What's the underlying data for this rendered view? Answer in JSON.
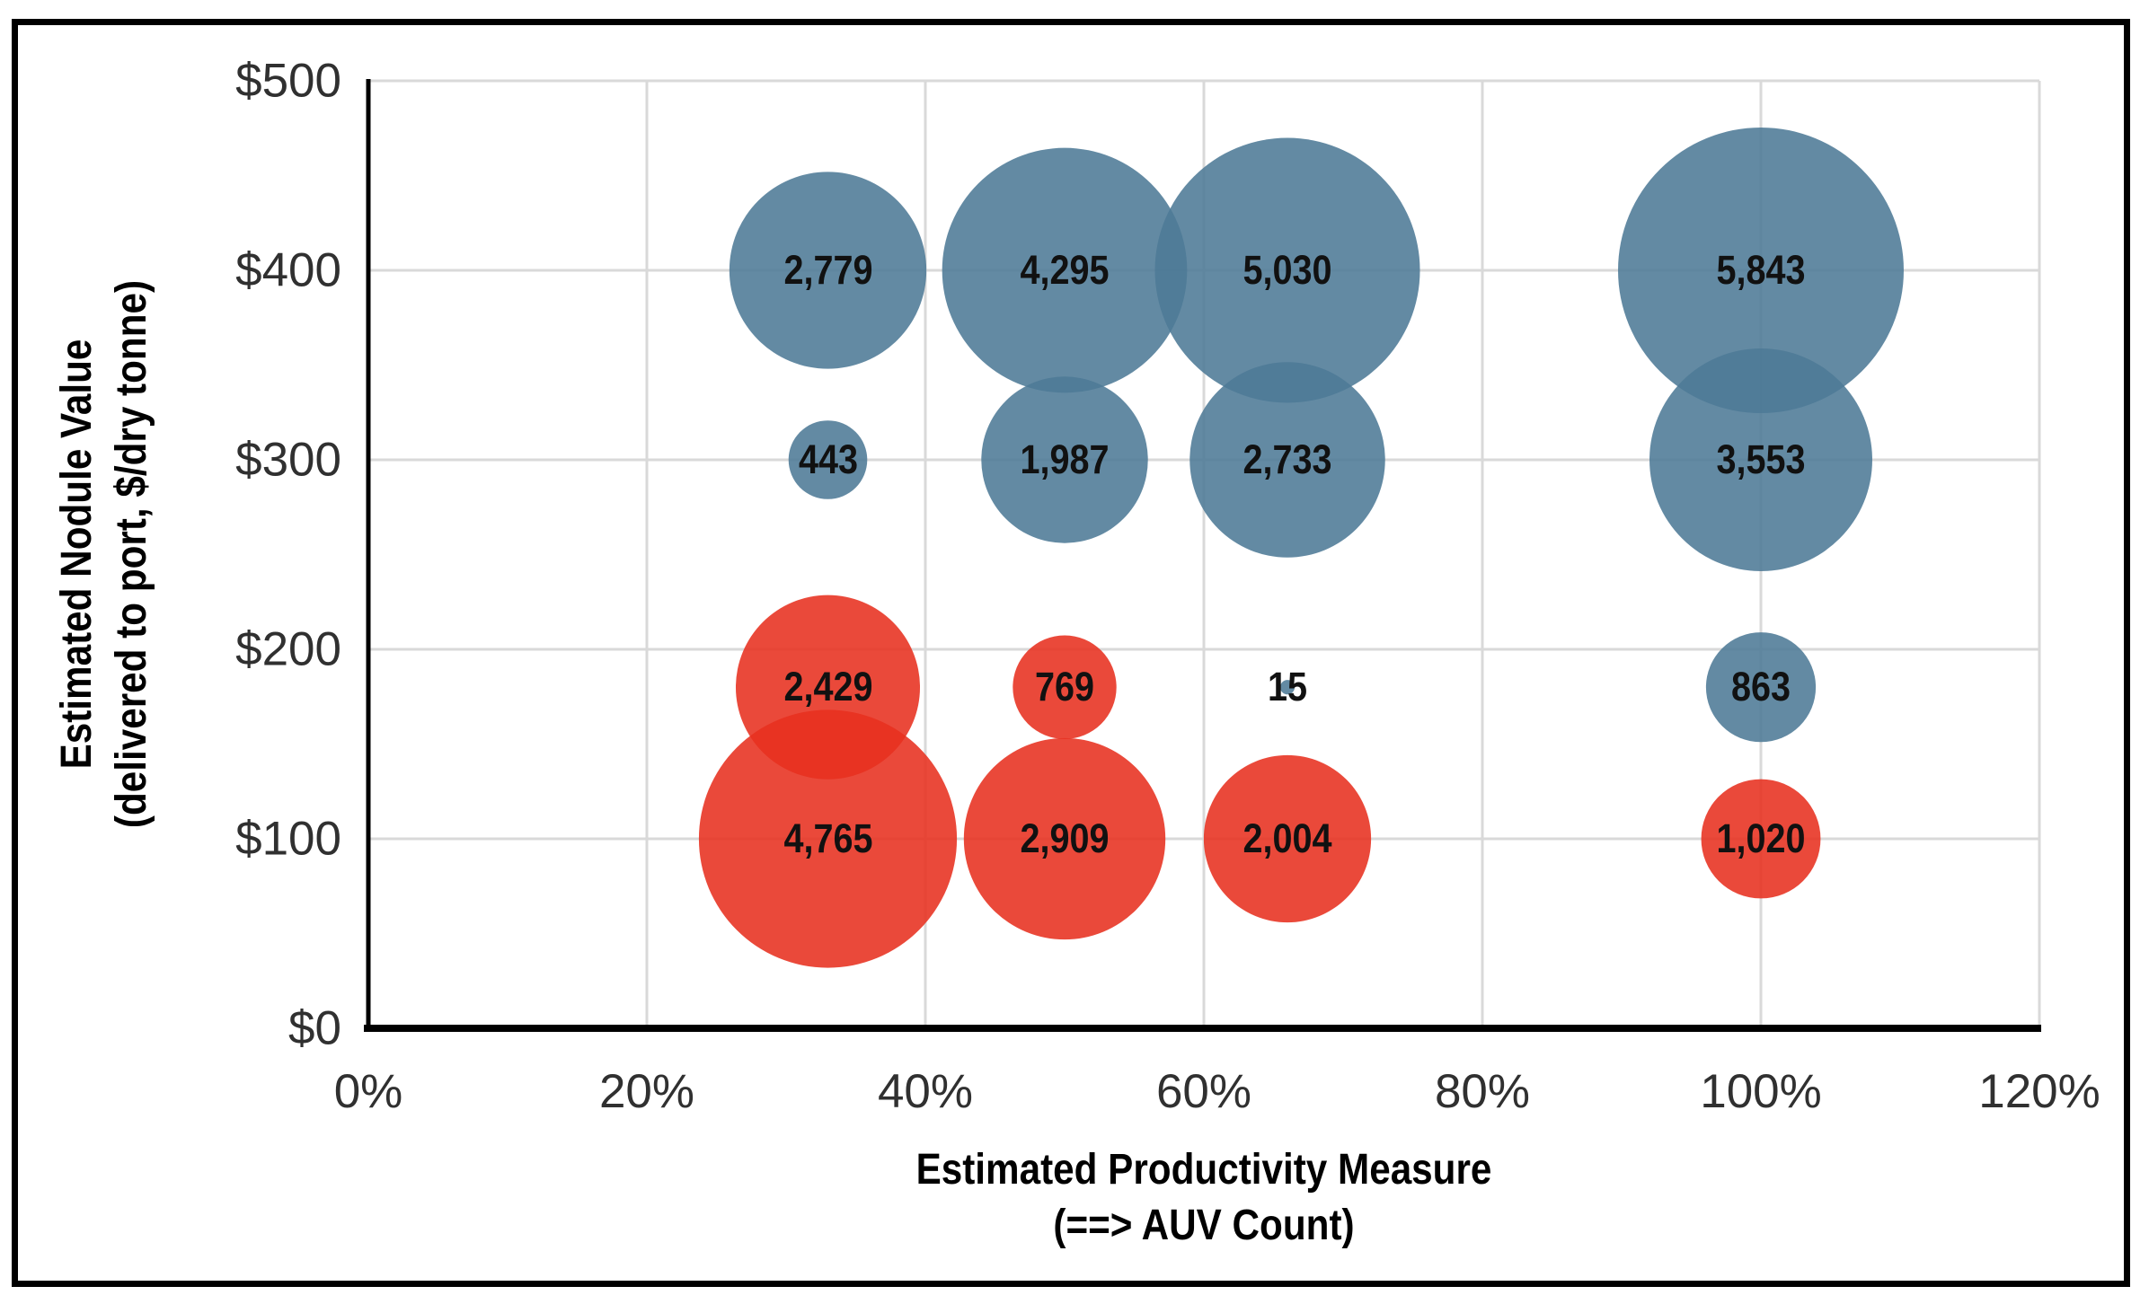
{
  "figure": {
    "background": "#FFFFFF",
    "border_color": "#000000",
    "gridline_color": "#D9D9D9",
    "axis_line_color": "#000000",
    "tick_text_color": "#303030",
    "label_text_color": "#111111"
  },
  "chart_data": {
    "type": "scatter",
    "variant": "bubble",
    "title": "",
    "xlabel_line1": "Estimated Productivity Measure",
    "xlabel_line2": "(==> AUV Count)",
    "ylabel_line1": "Estimated Nodule Value",
    "ylabel_line2": "(delivered to port, $/dry tonne)",
    "xlim": [
      0,
      120
    ],
    "ylim": [
      0,
      500
    ],
    "grid": true,
    "legend_position": "none",
    "x_tick_values": [
      0,
      20,
      40,
      60,
      80,
      100,
      120
    ],
    "x_tick_labels": [
      "0%",
      "20%",
      "40%",
      "60%",
      "80%",
      "100%",
      "120%"
    ],
    "y_tick_values": [
      0,
      100,
      200,
      300,
      400,
      500
    ],
    "y_tick_labels": [
      "$0",
      "$100",
      "$200",
      "$300",
      "$400",
      "$500"
    ],
    "fill_opacity": 0.88,
    "series": [
      {
        "name": "blue_series",
        "color": "#4D7A96",
        "points": [
          {
            "x": 33,
            "y": 400,
            "size": 2779,
            "label": "2,779"
          },
          {
            "x": 50,
            "y": 400,
            "size": 4295,
            "label": "4,295"
          },
          {
            "x": 66,
            "y": 400,
            "size": 5030,
            "label": "5,030"
          },
          {
            "x": 100,
            "y": 400,
            "size": 5843,
            "label": "5,843"
          },
          {
            "x": 33,
            "y": 300,
            "size": 443,
            "label": "443"
          },
          {
            "x": 50,
            "y": 300,
            "size": 1987,
            "label": "1,987"
          },
          {
            "x": 66,
            "y": 300,
            "size": 2733,
            "label": "2,733"
          },
          {
            "x": 100,
            "y": 300,
            "size": 3553,
            "label": "3,553"
          },
          {
            "x": 66,
            "y": 180,
            "size": 15,
            "label": "15"
          },
          {
            "x": 100,
            "y": 180,
            "size": 863,
            "label": "863"
          }
        ]
      },
      {
        "name": "red_series",
        "color": "#E7301F",
        "points": [
          {
            "x": 33,
            "y": 180,
            "size": 2429,
            "label": "2,429"
          },
          {
            "x": 50,
            "y": 180,
            "size": 769,
            "label": "769"
          },
          {
            "x": 33,
            "y": 100,
            "size": 4765,
            "label": "4,765"
          },
          {
            "x": 50,
            "y": 100,
            "size": 2909,
            "label": "2,909"
          },
          {
            "x": 66,
            "y": 100,
            "size": 2004,
            "label": "2,004"
          },
          {
            "x": 100,
            "y": 100,
            "size": 1020,
            "label": "1,020"
          }
        ]
      }
    ]
  }
}
